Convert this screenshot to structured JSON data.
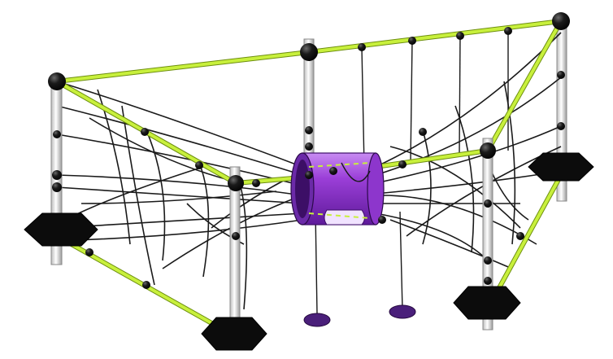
{
  "scene": {
    "subject": "rope-net-play-structure",
    "colors": {
      "background": "#ffffff",
      "post": "#eeeeee",
      "post_outline": "#8a8a8a",
      "beam": "#c8f03c",
      "beam_outline": "#6e8f10",
      "rope": "#1a1a1a",
      "connector": "#111111",
      "base": "#0c0c0c",
      "tunnel": "#9b3fd8",
      "tunnel_dark": "#5e1a9a",
      "tunnel_light": "#d6a6f5",
      "disc": "#4a1f7a"
    }
  }
}
